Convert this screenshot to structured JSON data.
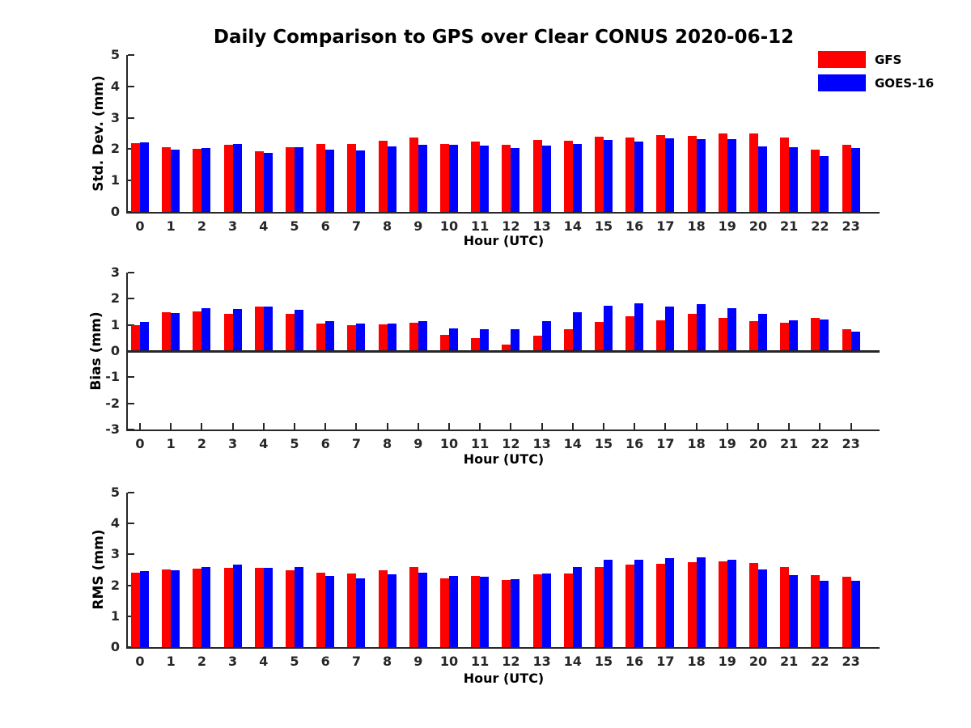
{
  "title": "Daily Comparison to GPS over Clear CONUS 2020-06-12",
  "legend": {
    "items": [
      {
        "label": "GFS",
        "color": "#ff0000"
      },
      {
        "label": "GOES-16",
        "color": "#0000ff"
      }
    ]
  },
  "chart_data": [
    {
      "type": "bar",
      "ylabel": "Std. Dev. (mm)",
      "xlabel": "Hour (UTC)",
      "ylim": [
        0,
        5
      ],
      "yticks": [
        0,
        1,
        2,
        3,
        4,
        5
      ],
      "grid": false,
      "legend_position": "top-right-above-axes",
      "categories": [
        "0",
        "1",
        "2",
        "3",
        "4",
        "5",
        "6",
        "7",
        "8",
        "9",
        "10",
        "11",
        "12",
        "13",
        "14",
        "15",
        "16",
        "17",
        "18",
        "19",
        "20",
        "21",
        "22",
        "23"
      ],
      "series": [
        {
          "name": "GFS",
          "color": "#ff0000",
          "values": [
            2.19,
            2.06,
            2.01,
            2.13,
            1.93,
            2.06,
            2.17,
            2.17,
            2.28,
            2.38,
            2.17,
            2.24,
            2.14,
            2.29,
            2.27,
            2.4,
            2.37,
            2.44,
            2.43,
            2.5,
            2.5,
            2.38,
            1.98,
            2.13
          ]
        },
        {
          "name": "GOES-16",
          "color": "#0000ff",
          "values": [
            2.21,
            1.98,
            2.04,
            2.16,
            1.89,
            2.06,
            1.98,
            1.95,
            2.1,
            2.13,
            2.14,
            2.12,
            2.04,
            2.12,
            2.16,
            2.3,
            2.24,
            2.34,
            2.31,
            2.33,
            2.09,
            2.07,
            1.79,
            2.04
          ]
        }
      ]
    },
    {
      "type": "bar",
      "ylabel": "Bias (mm)",
      "xlabel": "Hour (UTC)",
      "ylim": [
        -3,
        3
      ],
      "yticks": [
        -3,
        -2,
        -1,
        0,
        1,
        2,
        3
      ],
      "grid": false,
      "categories": [
        "0",
        "1",
        "2",
        "3",
        "4",
        "5",
        "6",
        "7",
        "8",
        "9",
        "10",
        "11",
        "12",
        "13",
        "14",
        "15",
        "16",
        "17",
        "18",
        "19",
        "20",
        "21",
        "22",
        "23"
      ],
      "series": [
        {
          "name": "GFS",
          "color": "#ff0000",
          "values": [
            0.98,
            1.49,
            1.53,
            1.41,
            1.69,
            1.41,
            1.05,
            0.98,
            1.01,
            1.09,
            0.62,
            0.49,
            0.24,
            0.6,
            0.82,
            1.11,
            1.32,
            1.18,
            1.42,
            1.27,
            1.15,
            1.09,
            1.26,
            0.85
          ]
        },
        {
          "name": "GOES-16",
          "color": "#0000ff",
          "values": [
            1.1,
            1.45,
            1.64,
            1.62,
            1.71,
            1.58,
            1.15,
            1.04,
            1.04,
            1.15,
            0.86,
            0.85,
            0.85,
            1.15,
            1.49,
            1.73,
            1.84,
            1.7,
            1.8,
            1.65,
            1.43,
            1.16,
            1.22,
            0.73
          ]
        }
      ]
    },
    {
      "type": "bar",
      "ylabel": "RMS (mm)",
      "xlabel": "Hour (UTC)",
      "ylim": [
        0,
        5
      ],
      "yticks": [
        0,
        1,
        2,
        3,
        4,
        5
      ],
      "grid": false,
      "categories": [
        "0",
        "1",
        "2",
        "3",
        "4",
        "5",
        "6",
        "7",
        "8",
        "9",
        "10",
        "11",
        "12",
        "13",
        "14",
        "15",
        "16",
        "17",
        "18",
        "19",
        "20",
        "21",
        "22",
        "23"
      ],
      "series": [
        {
          "name": "GFS",
          "color": "#ff0000",
          "values": [
            2.4,
            2.52,
            2.53,
            2.57,
            2.56,
            2.5,
            2.4,
            2.39,
            2.49,
            2.6,
            2.23,
            2.31,
            2.16,
            2.35,
            2.38,
            2.6,
            2.66,
            2.7,
            2.76,
            2.77,
            2.72,
            2.59,
            2.34,
            2.29
          ]
        },
        {
          "name": "GOES-16",
          "color": "#0000ff",
          "values": [
            2.46,
            2.48,
            2.6,
            2.67,
            2.56,
            2.58,
            2.31,
            2.22,
            2.35,
            2.42,
            2.3,
            2.28,
            2.19,
            2.38,
            2.6,
            2.84,
            2.84,
            2.87,
            2.9,
            2.82,
            2.51,
            2.33,
            2.15,
            2.15
          ]
        }
      ]
    }
  ]
}
